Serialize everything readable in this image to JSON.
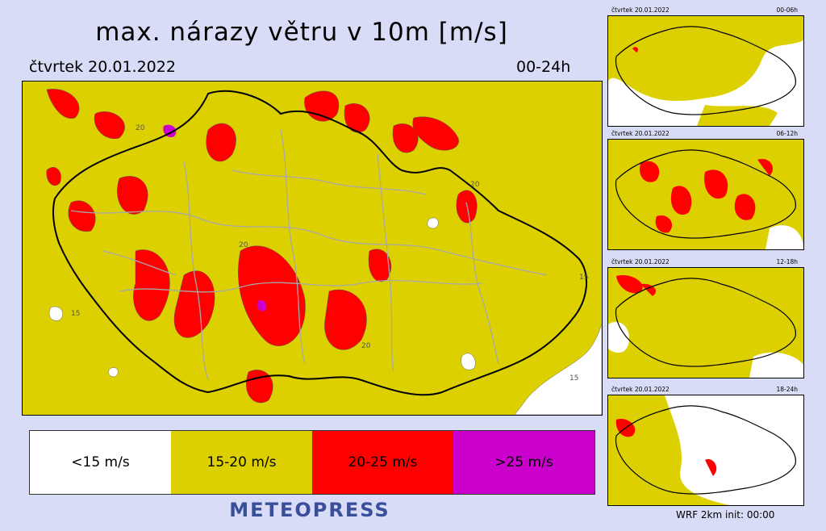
{
  "header": {
    "title": "max. nárazy větru v 10m [m/s]",
    "date": "čtvrtek 20.01.2022",
    "period": "00-24h"
  },
  "map": {
    "contour_labels": [
      "20",
      "15"
    ],
    "colors": {
      "below_15": "#ffffff",
      "15_20": "#ddd000",
      "20_25": "#ff0000",
      "above_25": "#cc00cc",
      "border": "#000000",
      "districts": "#a8a8a8"
    }
  },
  "legend": [
    {
      "label": "<15 m/s",
      "color": "#ffffff"
    },
    {
      "label": "15-20 m/s",
      "color": "#ddd000"
    },
    {
      "label": "20-25 m/s",
      "color": "#ff0000"
    },
    {
      "label": ">25 m/s",
      "color": "#cc00cc"
    }
  ],
  "brand": "METEOPRESS",
  "thumbnails": [
    {
      "date": "čtvrtek 20.01.2022",
      "period": "00-06h"
    },
    {
      "date": "čtvrtek 20.01.2022",
      "period": "06-12h"
    },
    {
      "date": "čtvrtek 20.01.2022",
      "period": "12-18h"
    },
    {
      "date": "čtvrtek 20.01.2022",
      "period": "18-24h"
    }
  ],
  "model_info": "WRF  2km  init:  00:00"
}
